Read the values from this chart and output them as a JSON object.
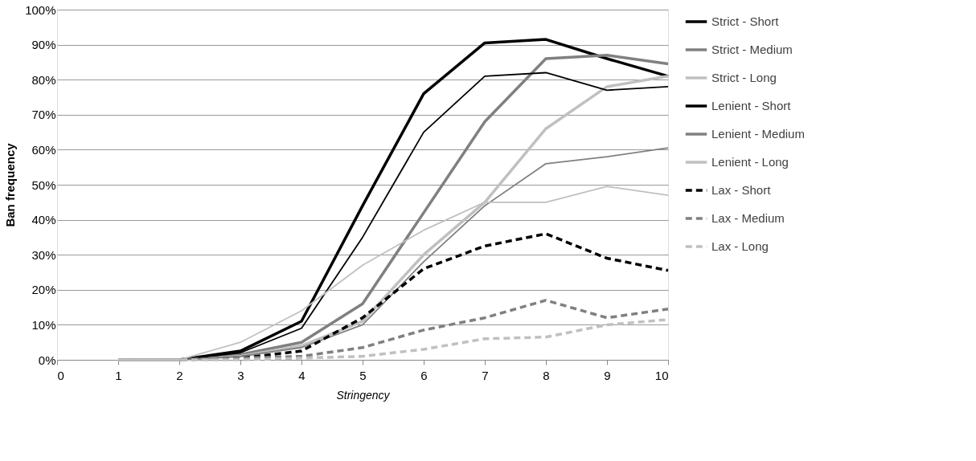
{
  "chart_data": {
    "type": "line",
    "xlabel": "Stringency",
    "ylabel": "Ban frequency",
    "x": [
      1,
      2,
      3,
      4,
      5,
      6,
      7,
      8,
      9,
      10
    ],
    "series": [
      {
        "name": "Strict - Short",
        "color": "#000000",
        "line_style": "solid",
        "values": [
          0,
          0,
          2.5,
          11,
          44,
          76,
          90.5,
          91.5,
          86,
          81
        ]
      },
      {
        "name": "Strict - Medium",
        "color": "#808080",
        "line_style": "solid",
        "values": [
          0,
          0,
          1.5,
          5,
          16,
          42,
          68,
          86,
          87,
          84.5
        ]
      },
      {
        "name": "Strict - Long",
        "color": "#c0c0c0",
        "line_style": "solid",
        "values": [
          0,
          0,
          1,
          4,
          11,
          30,
          45,
          66,
          78,
          81
        ]
      },
      {
        "name": "Lenient - Short",
        "color": "#000000",
        "line_style": "solid",
        "values": [
          0,
          0,
          2,
          9,
          35,
          65,
          81,
          82,
          77,
          78
        ]
      },
      {
        "name": "Lenient - Medium",
        "color": "#808080",
        "line_style": "solid",
        "values": [
          0,
          0,
          1,
          3.5,
          10,
          28,
          44,
          56,
          58,
          60.5
        ]
      },
      {
        "name": "Lenient - Long",
        "color": "#c0c0c0",
        "line_style": "solid",
        "values": [
          0,
          0,
          5,
          14,
          27,
          37,
          45,
          45,
          49.5,
          47
        ]
      },
      {
        "name": "Lax - Short",
        "color": "#000000",
        "line_style": "dashed",
        "values": [
          0,
          0,
          0.5,
          2.5,
          12,
          26,
          32.5,
          36,
          29,
          25.5
        ]
      },
      {
        "name": "Lax - Medium",
        "color": "#808080",
        "line_style": "dashed",
        "values": [
          0,
          0,
          0.5,
          1,
          3.5,
          8.5,
          12,
          17,
          12,
          14.5
        ]
      },
      {
        "name": "Lax - Long",
        "color": "#c0c0c0",
        "line_style": "dashed",
        "values": [
          0,
          0,
          0,
          0.5,
          1,
          3,
          6,
          6.5,
          10,
          11.5
        ]
      }
    ],
    "xlim": [
      0,
      10
    ],
    "xticks": [
      0,
      1,
      2,
      3,
      4,
      5,
      6,
      7,
      8,
      9,
      10
    ],
    "ylim": [
      0,
      100
    ],
    "yticks": [
      {
        "value": 0,
        "label": "0%"
      },
      {
        "value": 10,
        "label": "10%"
      },
      {
        "value": 20,
        "label": "20%"
      },
      {
        "value": 30,
        "label": "30%"
      },
      {
        "value": 40,
        "label": "40%"
      },
      {
        "value": 50,
        "label": "50%"
      },
      {
        "value": 60,
        "label": "60%"
      },
      {
        "value": 70,
        "label": "70%"
      },
      {
        "value": 80,
        "label": "80%"
      },
      {
        "value": 90,
        "label": "90%"
      },
      {
        "value": 100,
        "label": "100%"
      }
    ],
    "grid": "y",
    "legend": "right",
    "marker": "none"
  }
}
